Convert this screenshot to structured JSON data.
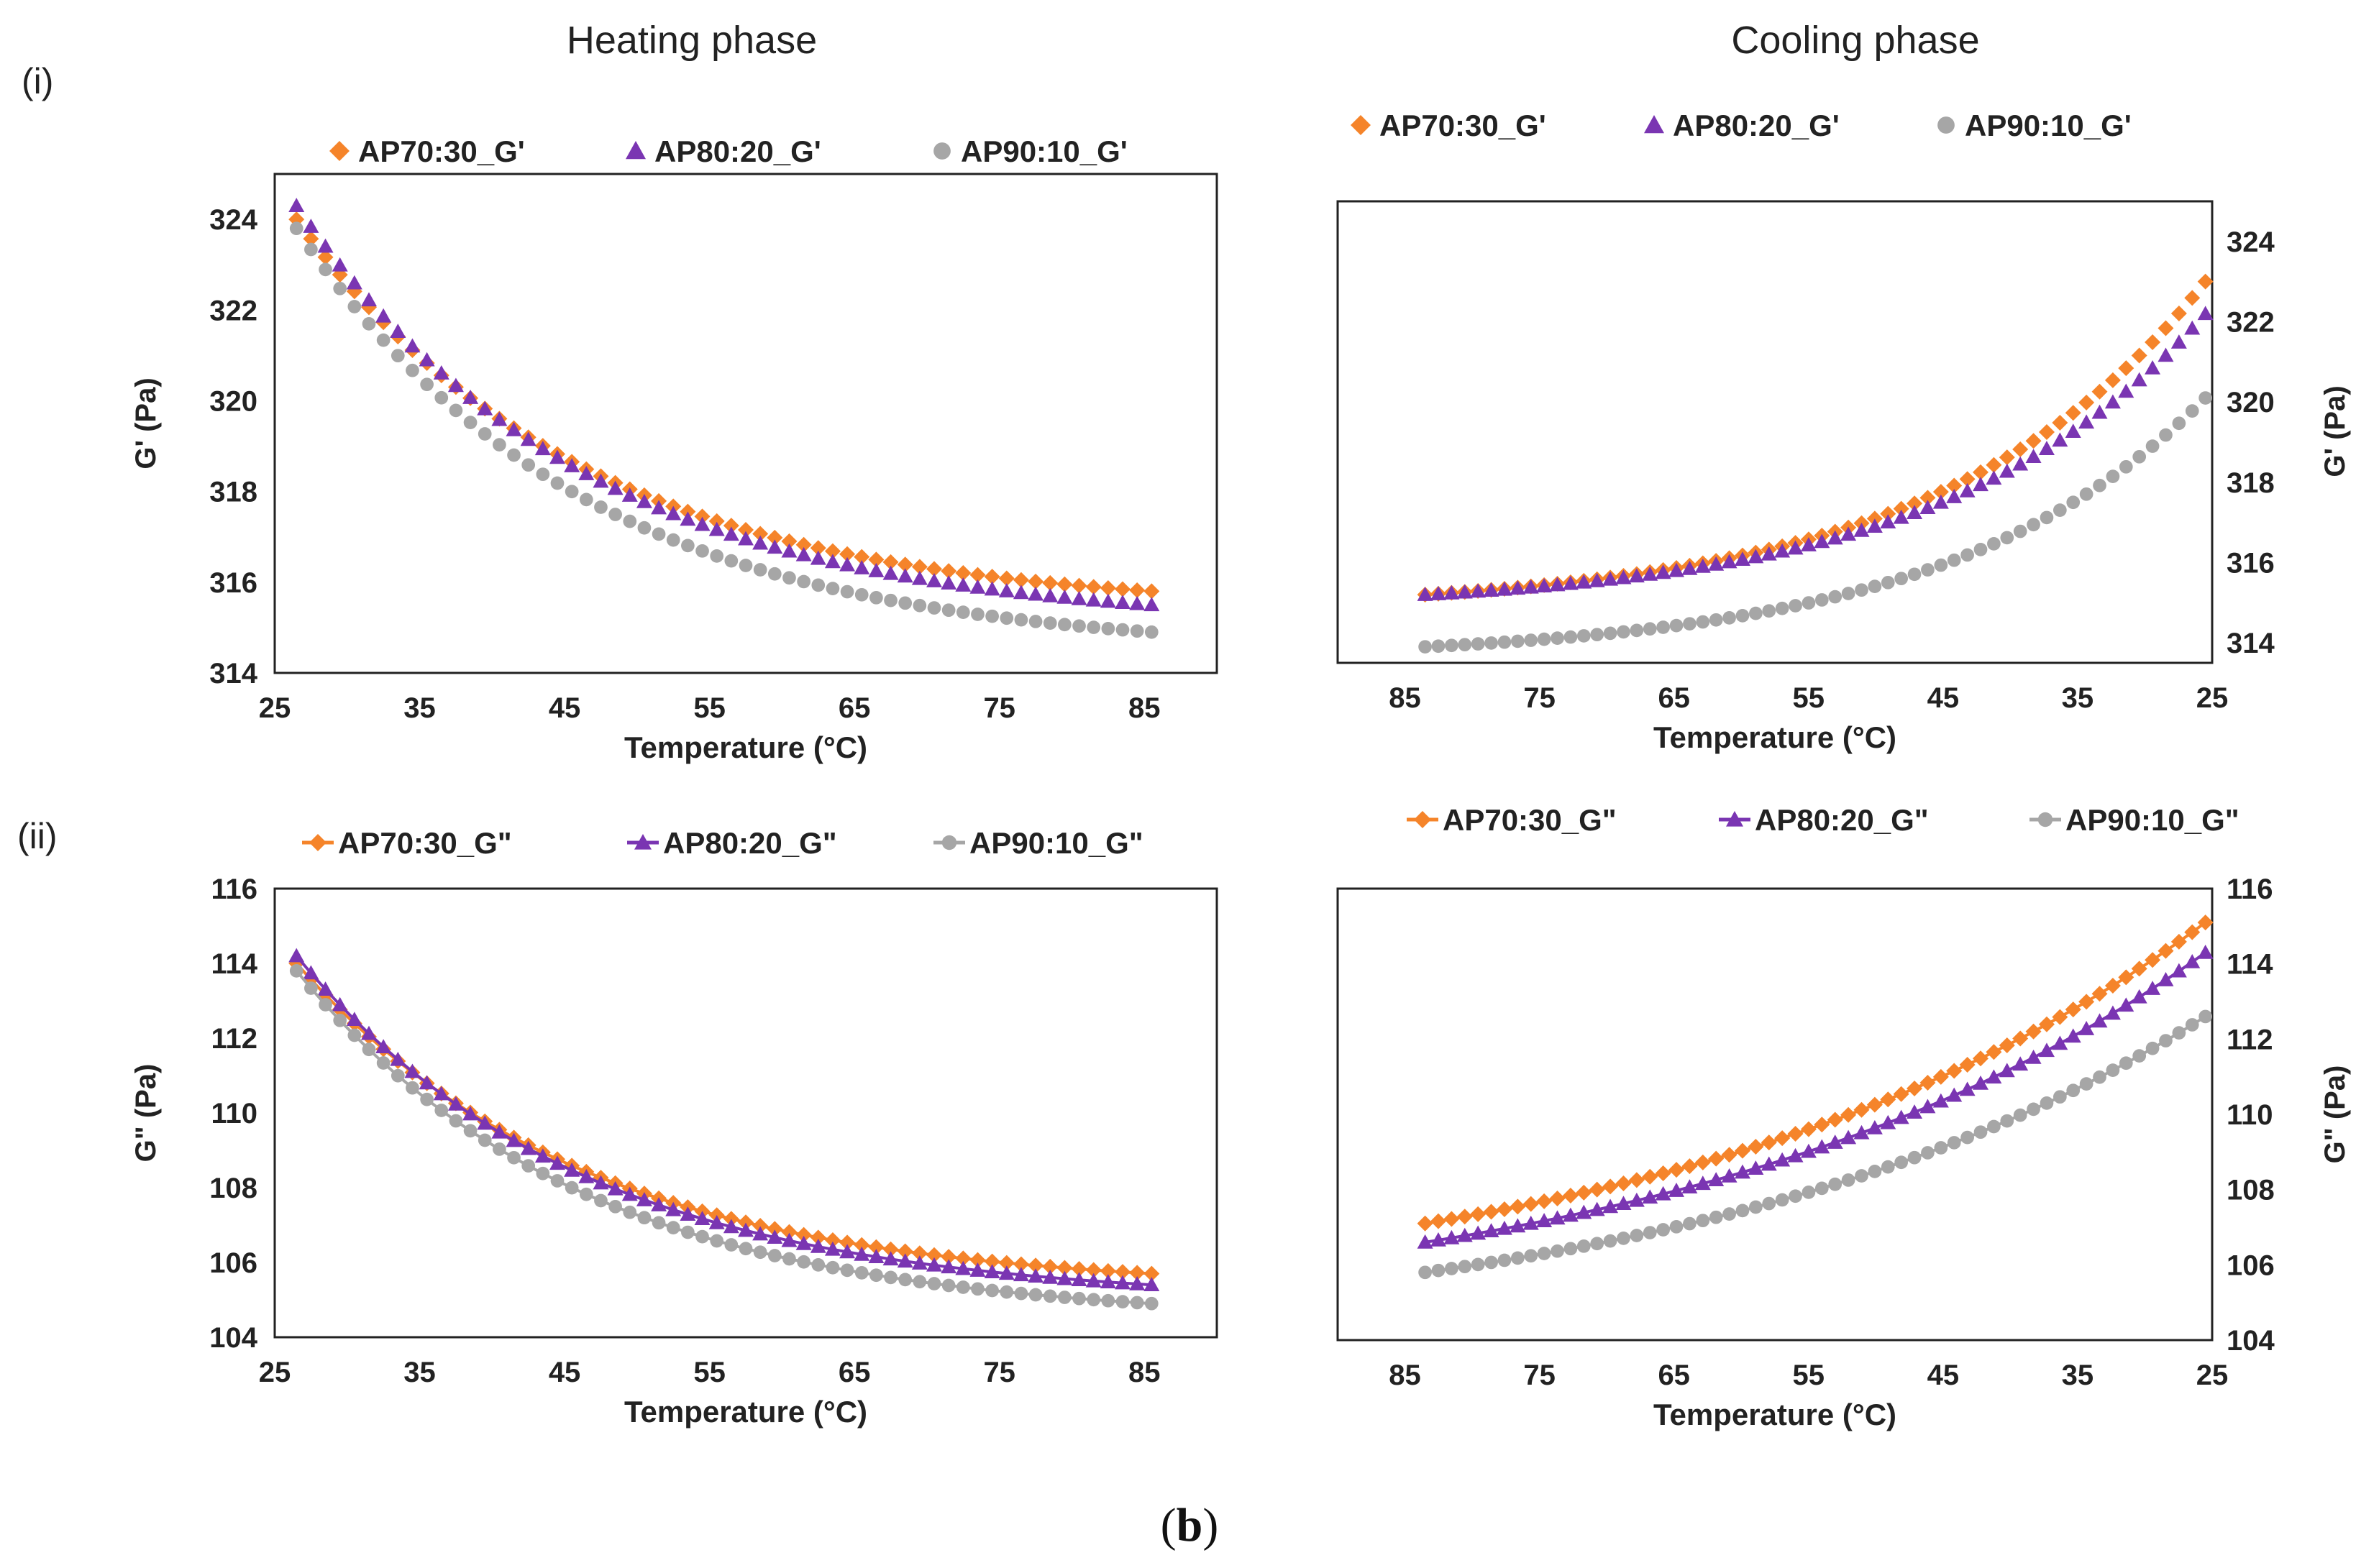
{
  "figure": {
    "column_titles": [
      "Heating phase",
      "Cooling phase"
    ],
    "row_labels": [
      "(i)",
      "(ii)"
    ],
    "caption_open": "(",
    "caption_letter": "b",
    "caption_close": ")"
  },
  "colors": {
    "AP70_30": "#f5842a",
    "AP80_20": "#7a35b2",
    "AP90_10": "#a6a6a6",
    "frame": "#222222",
    "text": "#222222"
  },
  "chart_data": [
    {
      "id": "heating-gprime",
      "type": "scatter",
      "title": "Heating phase",
      "xlabel": "Temperature (°C)",
      "ylabel": "G' (Pa)",
      "xlim": [
        25,
        90
      ],
      "ylim": [
        314,
        325
      ],
      "xticks": [
        25,
        35,
        45,
        55,
        65,
        75,
        85
      ],
      "yticks": [
        314,
        316,
        318,
        320,
        322,
        324
      ],
      "x_reversed": false,
      "y_axis_side": "left",
      "legend_position": "top",
      "legend_style": "markers",
      "n_points": 60,
      "series": [
        {
          "name": "AP70:30_G'",
          "marker": "diamond",
          "x_range": [
            26.5,
            85.5
          ],
          "start": 324.0,
          "end": 315.8,
          "curvature": 3.0
        },
        {
          "name": "AP80:20_G'",
          "marker": "triangle",
          "x_range": [
            26.5,
            85.5
          ],
          "start": 324.3,
          "end": 315.5,
          "curvature": 3.0
        },
        {
          "name": "AP90:10_G'",
          "marker": "circle",
          "x_range": [
            26.5,
            85.5
          ],
          "start": 323.8,
          "end": 314.9,
          "curvature": 3.0
        }
      ]
    },
    {
      "id": "cooling-gprime",
      "type": "scatter",
      "title": "Cooling phase",
      "xlabel": "Temperature (°C)",
      "ylabel": "G' (Pa)",
      "xlim": [
        25,
        90
      ],
      "ylim": [
        313.5,
        325
      ],
      "xticks": [
        85,
        75,
        65,
        55,
        45,
        35,
        25
      ],
      "yticks": [
        314,
        316,
        318,
        320,
        322,
        324
      ],
      "x_reversed": true,
      "y_axis_side": "right",
      "legend_position": "top",
      "legend_style": "markers",
      "n_points": 60,
      "series": [
        {
          "name": "AP70:30_G'",
          "marker": "diamond",
          "x_range": [
            83.5,
            25.5
          ],
          "start": 315.2,
          "end": 323.0,
          "curvature": -3.0
        },
        {
          "name": "AP80:20_G'",
          "marker": "triangle",
          "x_range": [
            83.5,
            25.5
          ],
          "start": 315.2,
          "end": 322.2,
          "curvature": -3.0
        },
        {
          "name": "AP90:10_G'",
          "marker": "circle",
          "x_range": [
            83.5,
            25.5
          ],
          "start": 313.9,
          "end": 320.1,
          "curvature": -3.0
        }
      ]
    },
    {
      "id": "heating-gdoubleprime",
      "type": "line",
      "title": "Heating phase",
      "xlabel": "Temperature (°C)",
      "ylabel": "G\" (Pa)",
      "xlim": [
        25,
        90
      ],
      "ylim": [
        104,
        116
      ],
      "xticks": [
        25,
        35,
        45,
        55,
        65,
        75,
        85
      ],
      "yticks": [
        104,
        106,
        108,
        110,
        112,
        114,
        116
      ],
      "x_reversed": false,
      "y_axis_side": "left",
      "legend_position": "top",
      "legend_style": "line",
      "n_points": 60,
      "series": [
        {
          "name": "AP70:30_G\"",
          "marker": "diamond",
          "x_range": [
            26.5,
            85.5
          ],
          "start": 114.0,
          "end": 105.7,
          "curvature": 3.0
        },
        {
          "name": "AP80:20_G\"",
          "marker": "triangle",
          "x_range": [
            26.5,
            85.5
          ],
          "start": 114.2,
          "end": 105.4,
          "curvature": 3.0
        },
        {
          "name": "AP90:10_G\"",
          "marker": "circle",
          "x_range": [
            26.5,
            85.5
          ],
          "start": 113.8,
          "end": 104.9,
          "curvature": 3.0
        }
      ]
    },
    {
      "id": "cooling-gdoubleprime",
      "type": "line",
      "title": "Cooling phase",
      "xlabel": "Temperature (°C)",
      "ylabel": "G\" (Pa)",
      "xlim": [
        25,
        90
      ],
      "ylim": [
        104,
        116
      ],
      "xticks": [
        85,
        75,
        65,
        55,
        45,
        35,
        25
      ],
      "yticks": [
        104,
        106,
        108,
        110,
        112,
        114,
        116
      ],
      "x_reversed": true,
      "y_axis_side": "right",
      "legend_position": "top",
      "legend_style": "line",
      "n_points": 60,
      "series": [
        {
          "name": "AP70:30_G\"",
          "marker": "diamond",
          "x_range": [
            83.5,
            25.5
          ],
          "start": 107.1,
          "end": 115.1,
          "curvature": -1.5
        },
        {
          "name": "AP80:20_G\"",
          "marker": "triangle",
          "x_range": [
            83.5,
            25.5
          ],
          "start": 106.6,
          "end": 114.3,
          "curvature": -1.5
        },
        {
          "name": "AP90:10_G\"",
          "marker": "circle",
          "x_range": [
            83.5,
            25.5
          ],
          "start": 105.8,
          "end": 112.6,
          "curvature": -1.5
        }
      ]
    }
  ]
}
